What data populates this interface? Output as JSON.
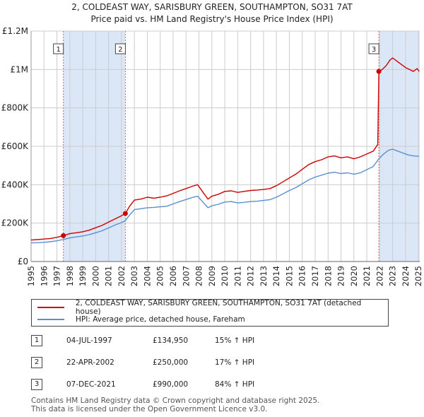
{
  "header": {
    "line1": "2, COLDEAST WAY, SARISBURY GREEN, SOUTHAMPTON, SO31 7AT",
    "line2": "Price paid vs. HM Land Registry's House Price Index (HPI)"
  },
  "legend": {
    "property_label": "2, COLDEAST WAY, SARISBURY GREEN, SOUTHAMPTON, SO31 7AT (detached house)",
    "hpi_label": "HPI: Average price, detached house, Fareham"
  },
  "transactions": [
    {
      "num": "1",
      "date": "04-JUL-1997",
      "price": "£134,950",
      "hpi": "15% ↑ HPI"
    },
    {
      "num": "2",
      "date": "22-APR-2002",
      "price": "£250,000",
      "hpi": "17% ↑ HPI"
    },
    {
      "num": "3",
      "date": "07-DEC-2021",
      "price": "£990,000",
      "hpi": "84% ↑ HPI"
    }
  ],
  "footer": {
    "line1": "Contains HM Land Registry data © Crown copyright and database right 2025.",
    "line2": "This data is licensed under the Open Government Licence v3.0."
  },
  "colors": {
    "property": "#cc0000",
    "hpi": "#5b8fd0",
    "shade": "#dbe6f6",
    "grid": "#cccccc",
    "marker_line": "#e06060"
  },
  "chart_data": {
    "type": "line",
    "title": "2, COLDEAST WAY, SARISBURY GREEN, SOUTHAMPTON, SO31 7AT",
    "subtitle": "Price paid vs. HM Land Registry's House Price Index (HPI)",
    "xlim": [
      1995,
      2025.1
    ],
    "ylim": [
      0,
      1200000
    ],
    "y_ticks": [
      {
        "value": 0,
        "label": "£0"
      },
      {
        "value": 200000,
        "label": "£200K"
      },
      {
        "value": 400000,
        "label": "£400K"
      },
      {
        "value": 600000,
        "label": "£600K"
      },
      {
        "value": 800000,
        "label": "£800K"
      },
      {
        "value": 1000000,
        "label": "£1M"
      },
      {
        "value": 1200000,
        "label": "£1.2M"
      }
    ],
    "x_ticks": [
      "1995",
      "1996",
      "1997",
      "1998",
      "1999",
      "2000",
      "2001",
      "2002",
      "2003",
      "2004",
      "2005",
      "2006",
      "2007",
      "2008",
      "2009",
      "2010",
      "2011",
      "2012",
      "2013",
      "2014",
      "2015",
      "2016",
      "2017",
      "2018",
      "2019",
      "2020",
      "2021",
      "2022",
      "2023",
      "2024",
      "2025"
    ],
    "shaded_ranges": [
      [
        1997.5,
        2002.3
      ],
      [
        2021.93,
        2025.1
      ]
    ],
    "markers": [
      {
        "label": "1",
        "x": 1997.5,
        "y": 134950
      },
      {
        "label": "2",
        "x": 2002.3,
        "y": 250000
      },
      {
        "label": "3",
        "x": 2021.93,
        "y": 990000
      }
    ],
    "series": [
      {
        "name": "2, COLDEAST WAY, SARISBURY GREEN, SOUTHAMPTON, SO31 7AT (detached house)",
        "x": [
          1995,
          1995.5,
          1996,
          1996.5,
          1997,
          1997.5,
          1998,
          1998.5,
          1999,
          1999.5,
          2000,
          2000.5,
          2001,
          2001.5,
          2002,
          2002.3,
          2002.6,
          2003,
          2003.5,
          2004,
          2004.5,
          2005,
          2005.5,
          2006,
          2006.5,
          2007,
          2007.5,
          2007.9,
          2008.3,
          2008.7,
          2009,
          2009.5,
          2010,
          2010.5,
          2011,
          2011.5,
          2012,
          2012.5,
          2013,
          2013.5,
          2014,
          2014.5,
          2015,
          2015.5,
          2016,
          2016.5,
          2017,
          2017.5,
          2018,
          2018.5,
          2019,
          2019.5,
          2020,
          2020.5,
          2021,
          2021.5,
          2021.85,
          2021.93,
          2022.2,
          2022.5,
          2022.8,
          2023,
          2023.3,
          2023.6,
          2024,
          2024.3,
          2024.6,
          2024.9,
          2025.05
        ],
        "y": [
          112000,
          114000,
          117000,
          120000,
          126000,
          134950,
          145000,
          150000,
          155000,
          163000,
          176000,
          188000,
          205000,
          222000,
          238000,
          250000,
          285000,
          320000,
          325000,
          335000,
          330000,
          335000,
          342000,
          355000,
          368000,
          380000,
          392000,
          400000,
          362000,
          325000,
          340000,
          350000,
          365000,
          368000,
          360000,
          365000,
          370000,
          372000,
          375000,
          380000,
          395000,
          415000,
          435000,
          455000,
          480000,
          505000,
          520000,
          530000,
          545000,
          550000,
          540000,
          545000,
          535000,
          545000,
          560000,
          575000,
          610000,
          990000,
          1000000,
          1020000,
          1050000,
          1060000,
          1045000,
          1030000,
          1010000,
          1000000,
          990000,
          1005000,
          990000
        ]
      },
      {
        "name": "HPI: Average price, detached house, Fareham",
        "x": [
          1995,
          1995.5,
          1996,
          1996.5,
          1997,
          1997.5,
          1998,
          1998.5,
          1999,
          1999.5,
          2000,
          2000.5,
          2001,
          2001.5,
          2002,
          2002.3,
          2002.6,
          2003,
          2003.5,
          2004,
          2004.5,
          2005,
          2005.5,
          2006,
          2006.5,
          2007,
          2007.5,
          2007.9,
          2008.3,
          2008.7,
          2009,
          2009.5,
          2010,
          2010.5,
          2011,
          2011.5,
          2012,
          2012.5,
          2013,
          2013.5,
          2014,
          2014.5,
          2015,
          2015.5,
          2016,
          2016.5,
          2017,
          2017.5,
          2018,
          2018.5,
          2019,
          2019.5,
          2020,
          2020.5,
          2021,
          2021.5,
          2021.93,
          2022.3,
          2022.7,
          2023,
          2023.4,
          2023.8,
          2024.2,
          2024.6,
          2025.05
        ],
        "y": [
          97000,
          98000,
          100000,
          103000,
          108000,
          115000,
          123000,
          128000,
          133000,
          140000,
          150000,
          160000,
          175000,
          190000,
          203000,
          213000,
          240000,
          270000,
          275000,
          280000,
          282000,
          285000,
          288000,
          300000,
          312000,
          323000,
          334000,
          340000,
          310000,
          280000,
          290000,
          298000,
          310000,
          312000,
          305000,
          308000,
          312000,
          314000,
          318000,
          322000,
          335000,
          352000,
          370000,
          385000,
          405000,
          425000,
          440000,
          450000,
          460000,
          465000,
          458000,
          462000,
          455000,
          462000,
          478000,
          495000,
          535000,
          560000,
          580000,
          585000,
          575000,
          565000,
          555000,
          550000,
          548000
        ]
      }
    ]
  }
}
